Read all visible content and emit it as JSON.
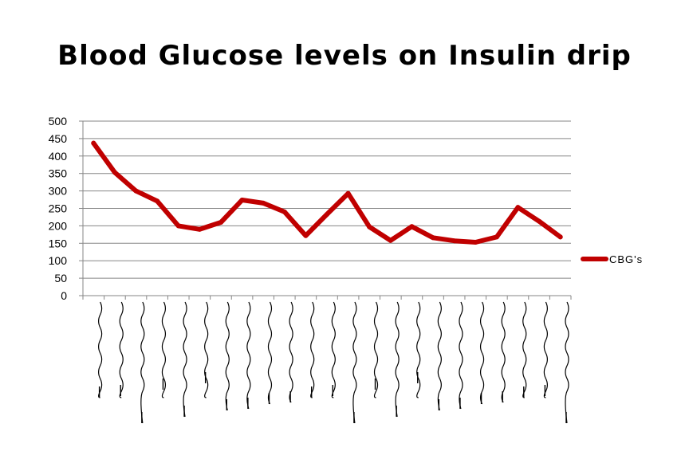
{
  "chart_data": {
    "type": "line",
    "title": "Blood Glucose levels on Insulin drip",
    "xlabel": "",
    "ylabel": "",
    "ylim": [
      0,
      500
    ],
    "yticks": [
      0,
      50,
      100,
      150,
      200,
      250,
      300,
      350,
      400,
      450,
      500
    ],
    "grid": true,
    "legend_position": "right",
    "x": [
      1,
      2,
      3,
      4,
      5,
      6,
      7,
      8,
      9,
      10,
      11,
      12,
      13,
      14,
      15,
      16,
      17,
      18,
      19,
      20,
      21,
      22,
      23
    ],
    "series": [
      {
        "name": "CBG's",
        "color": "#c00000",
        "values": [
          437,
          353,
          300,
          271,
          200,
          190,
          210,
          274,
          265,
          240,
          172,
          233,
          293,
          197,
          158,
          198,
          166,
          157,
          153,
          168,
          253,
          213,
          168
        ]
      }
    ]
  }
}
